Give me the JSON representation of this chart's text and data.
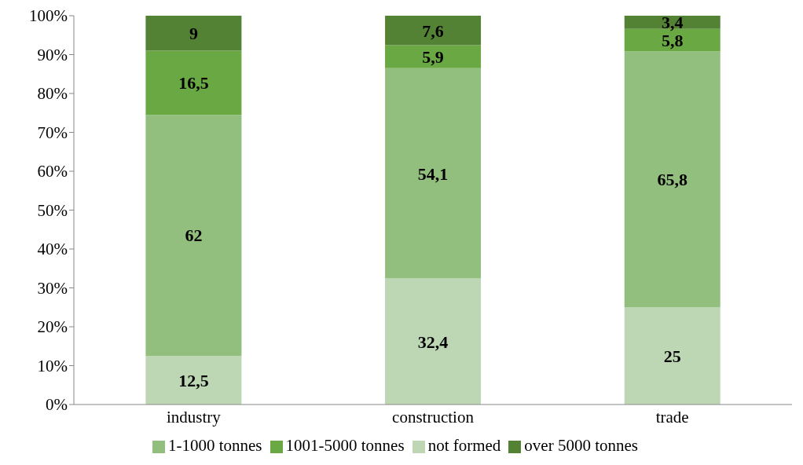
{
  "chart_data": {
    "type": "bar",
    "stacked": true,
    "categories": [
      "industry",
      "construction",
      "trade"
    ],
    "series": [
      {
        "name": "not formed",
        "color": "#bdd7b4",
        "values": [
          12.5,
          32.4,
          25
        ],
        "value_labels": [
          "12,5",
          "32,4",
          "25"
        ]
      },
      {
        "name": "1-1000 tonnes",
        "color": "#93bf7e",
        "values": [
          62,
          54.1,
          65.8
        ],
        "value_labels": [
          "62",
          "54,1",
          "65,8"
        ]
      },
      {
        "name": "1001-5000 tonnes",
        "color": "#6aa843",
        "values": [
          16.5,
          5.9,
          5.8
        ],
        "value_labels": [
          "16,5",
          "5,9",
          "5,8"
        ]
      },
      {
        "name": "over 5000 tonnes",
        "color": "#548235",
        "values": [
          9,
          7.6,
          3.4
        ],
        "value_labels": [
          "9",
          "7,6",
          "3,4"
        ]
      }
    ],
    "ylim": [
      0,
      100
    ],
    "yticks": [
      {
        "value": 0,
        "label": "0%"
      },
      {
        "value": 10,
        "label": "10%"
      },
      {
        "value": 20,
        "label": "20%"
      },
      {
        "value": 30,
        "label": "30%"
      },
      {
        "value": 40,
        "label": "40%"
      },
      {
        "value": 50,
        "label": "50%"
      },
      {
        "value": 60,
        "label": "60%"
      },
      {
        "value": 70,
        "label": "70%"
      },
      {
        "value": 80,
        "label": "80%"
      },
      {
        "value": 90,
        "label": "90%"
      },
      {
        "value": 100,
        "label": "100%"
      }
    ],
    "grid": false,
    "legend": "bottom"
  }
}
